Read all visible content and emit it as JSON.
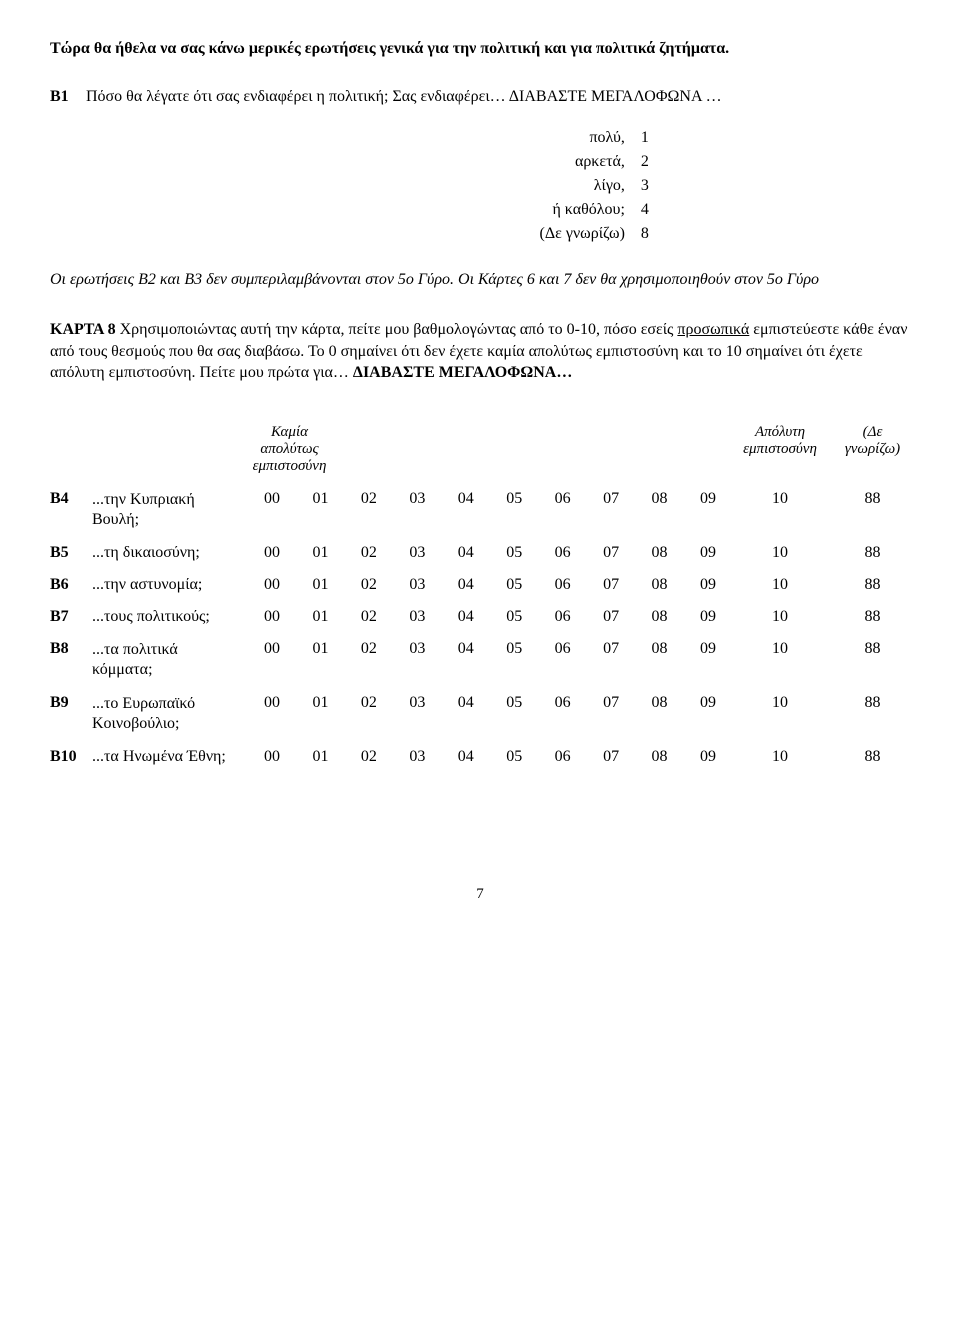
{
  "intro": "Τώρα θα ήθελα να σας κάνω μερικές ερωτήσεις γενικά για την πολιτική και για πολιτικά ζητήματα.",
  "b1": {
    "code": "B1",
    "text": "Πόσο θα λέγατε ότι σας ενδιαφέρει η πολιτική; Σας ενδιαφέρει…  ΔΙΑΒΑΣΤΕ ΜΕΓΑΛΟΦΩΝΑ …",
    "options": [
      {
        "label": "πολύ,",
        "code": "1"
      },
      {
        "label": "αρκετά,",
        "code": "2"
      },
      {
        "label": "λίγο,",
        "code": "3"
      },
      {
        "label": "ή καθόλου;",
        "code": "4"
      },
      {
        "label": "(Δε γνωρίζω)",
        "code": "8"
      }
    ]
  },
  "note": "Οι ερωτήσεις Β2 και Β3 δεν συμπεριλαμβάνονται στον 5ο Γύρο. Οι Κάρτες 6 και 7 δεν θα χρησιμοποιηθούν στον 5ο Γύρο",
  "card": {
    "lead": "ΚΑΡΤΑ 8",
    "body1": " Χρησιμοποιώντας αυτή την κάρτα, πείτε μου βαθμολογώντας από το 0-10, πόσο εσείς ",
    "underline": "προσωπικά",
    "body2": " εμπιστεύεστε κάθε έναν από τους θεσμούς που θα σας διαβάσω. Το 0 σημαίνει ότι δεν έχετε καμία απολύτως εμπιστοσύνη και το 10 σημαίνει ότι έχετε απόλυτη εμπιστοσύνη. Πείτε μου πρώτα για… ",
    "tail": "ΔΙΑΒΑΣΤΕ ΜΕΓΑΛΟΦΩΝΑ…"
  },
  "scale_headers": {
    "left": "Καμία απολύτως εμπιστοσύνη",
    "right": "Απόλυτη εμπιστοσύνη",
    "dk": "(Δε γνωρίζω)"
  },
  "scale_numbers": [
    "00",
    "01",
    "02",
    "03",
    "04",
    "05",
    "06",
    "07",
    "08",
    "09"
  ],
  "scale_ten": "10",
  "scale_dk": "88",
  "items": [
    {
      "code": "B4",
      "label": "...την Κυπριακή Βουλή;",
      "multiline": true
    },
    {
      "code": "B5",
      "label": "...τη δικαιοσύνη;"
    },
    {
      "code": "B6",
      "label": "...την αστυνομία;"
    },
    {
      "code": "B7",
      "label": "...τους πολιτικούς;"
    },
    {
      "code": "B8",
      "label": "...τα πολιτικά κόμματα;",
      "multiline": true
    },
    {
      "code": "B9",
      "label": "...το Ευρωπαϊκό Κοινοβούλιο;",
      "multiline": true
    },
    {
      "code": "B10",
      "label": "...τα Ηνωμένα Έθνη;"
    }
  ],
  "page_number": "7"
}
